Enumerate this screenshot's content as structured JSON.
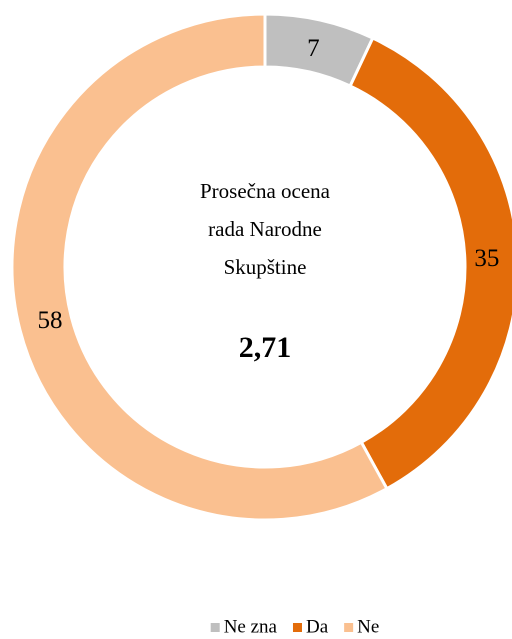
{
  "chart_data": {
    "type": "donut",
    "categories": [
      "Ne zna",
      "Da",
      "Ne"
    ],
    "values": [
      7,
      35,
      58
    ],
    "colors": [
      "#bfbfbf",
      "#e36c0a",
      "#fac090"
    ],
    "center_text": [
      "Prosečna ocena",
      "rada Narodne",
      "Skupštine"
    ],
    "center_value": "2,71",
    "legend": "bottom"
  }
}
